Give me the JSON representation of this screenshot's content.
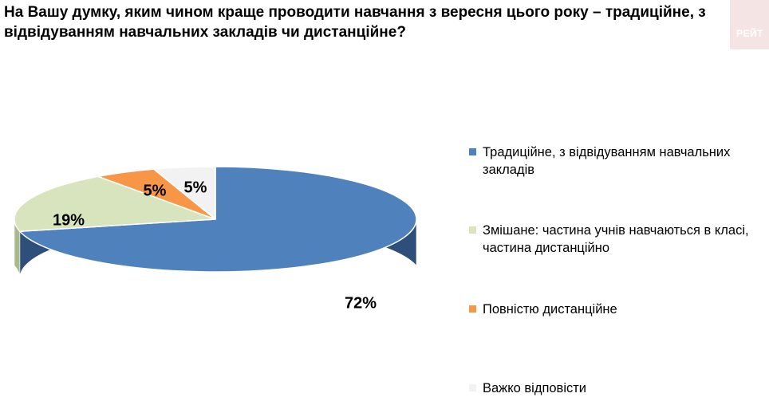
{
  "chart_data": {
    "type": "pie",
    "title": "На Вашу думку, яким чином краще проводити навчання з вересня цього року – традиційне, з відвідуванням навчальних закладів чи дистанційне?",
    "categories": [
      "Традиційне, з відвідуванням навчальних закладів",
      "Змішане: частина учнів навчаються в класі, частина дистанційно",
      "Повністю дистанційне",
      "Важко відповісти"
    ],
    "values": [
      72,
      19,
      5,
      5
    ],
    "data_labels": [
      "72%",
      "19%",
      "5%",
      "5%"
    ],
    "colors": [
      "#4f81bd",
      "#d7e4bd",
      "#f79646",
      "#f2f2f2"
    ],
    "side_colors": [
      "#2e4f7a",
      "#a9b98c",
      "#c0702e",
      "#c8c8c8"
    ],
    "legend_position": "right",
    "style": "3d"
  },
  "brand": {
    "text": "РЕЙТ"
  }
}
